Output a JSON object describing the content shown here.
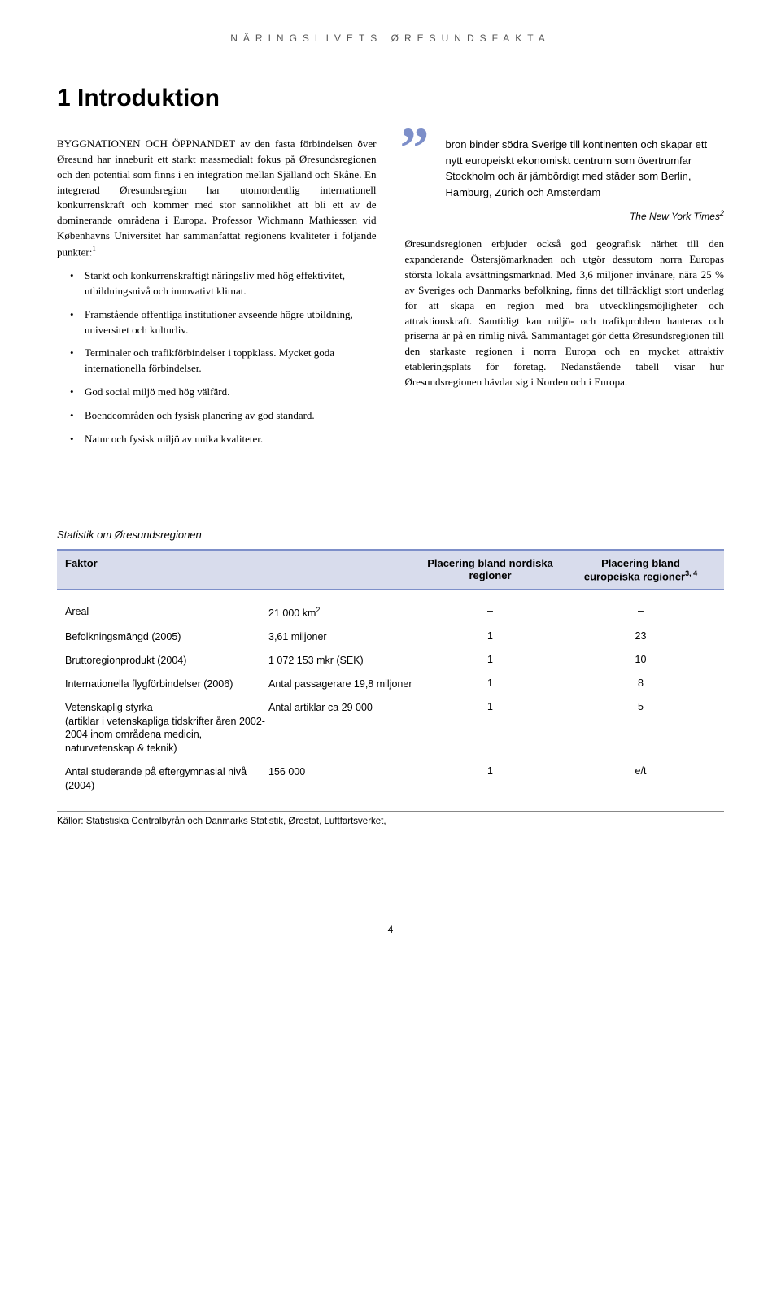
{
  "header": "NÄRINGSLIVETS ØRESUNDSFAKTA",
  "chapter": "1 Introduktion",
  "left_intro": "BYGGNATIONEN OCH ÖPPNANDET av den fasta förbindelsen över Øresund har inneburit ett starkt massmedialt fokus på Øresundsregionen och den potential som finns i en integration mellan Själland och Skåne. En integrerad Øresundsregion har utomordentlig internationell konkurrenskraft och kommer med stor sannolikhet att bli ett av de dominerande områdena i Europa. Professor Wichmann Mathiessen vid Københavns Universitet har sammanfattat regionens kvaliteter i följande punkter:",
  "left_intro_sup": "1",
  "bullets": [
    "Starkt och konkurrenskraftigt näringsliv med hög effektivitet, utbildningsnivå och innovativt klimat.",
    "Framstående offentliga institutioner avseende högre utbildning, universitet och kulturliv.",
    "Terminaler och trafikförbindelser i toppklass. Mycket goda internationella förbindelser.",
    "God social miljö med hög välfärd.",
    "Boendeområden och fysisk planering av god standard.",
    "Natur och fysisk miljö av unika kvaliteter."
  ],
  "quote": "bron binder södra Sverige till kontinenten och skapar ett nytt europeiskt ekonomiskt centrum som övertrumfar Stockholm och är jämbördigt med städer som Berlin, Hamburg, Zürich och Amsterdam",
  "quote_attr": "The New York Times",
  "quote_sup": "2",
  "right_body": "Øresundsregionen erbjuder också god geografisk närhet till den expanderande Östersjömarknaden och utgör dessutom norra Europas största lokala avsättningsmarknad. Med 3,6 miljoner invånare, nära 25 % av Sveriges och Danmarks befolkning, finns det tillräckligt stort underlag för att skapa en region med bra utvecklingsmöjligheter och attraktionskraft. Samtidigt kan miljö- och trafikproblem hanteras och priserna är på en rimlig nivå. Sammantaget gör detta Øresundsregionen till den starkaste regionen i norra Europa och en mycket attraktiv etableringsplats för företag. Nedanstående tabell visar hur Øresundsregionen hävdar sig i Norden och i Europa.",
  "stats_title": "Statistik om Øresundsregionen",
  "table": {
    "headers": {
      "factor": "Faktor",
      "nordic": "Placering bland nordiska regioner",
      "euro_line1": "Placering bland",
      "euro_line2": "europeiska regioner",
      "euro_sup": "3, 4"
    },
    "rows": [
      {
        "factor": "Areal",
        "value": "21 000 km",
        "value_sup": "2",
        "nordic": "–",
        "euro": "–"
      },
      {
        "factor": "Befolkningsmängd (2005)",
        "value": "3,61 miljoner",
        "nordic": "1",
        "euro": "23"
      },
      {
        "factor": "Bruttoregionprodukt (2004)",
        "value": "1 072 153 mkr (SEK)",
        "nordic": "1",
        "euro": "10"
      },
      {
        "factor": "Internationella flygförbindelser (2006)",
        "value": "Antal passagerare 19,8 miljoner",
        "nordic": "1",
        "euro": "8"
      },
      {
        "factor": "Vetenskaplig styrka\n(artiklar i vetenskapliga tidskrifter åren 2002-2004 inom områdena medicin, naturvetenskap & teknik)",
        "value": "Antal artiklar ca 29 000",
        "nordic": "1",
        "euro": "5"
      },
      {
        "factor": "Antal studerande på eftergymnasial nivå (2004)",
        "value": "156 000",
        "nordic": "1",
        "euro": "e/t"
      }
    ]
  },
  "sources": "Källor: Statistiska Centralbyrån och Danmarks Statistik, Ørestat, Luftfartsverket,",
  "page_number": "4"
}
